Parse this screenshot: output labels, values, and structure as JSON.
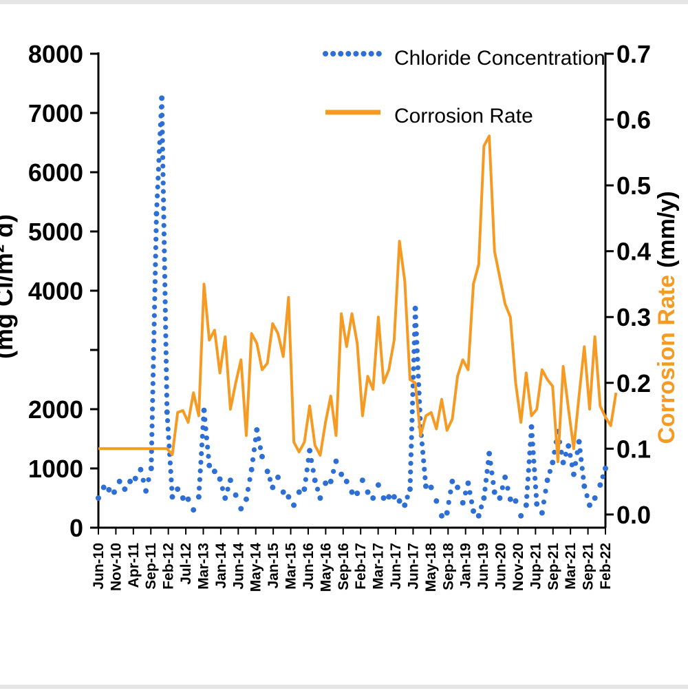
{
  "chart_data": {
    "type": "line",
    "title": "",
    "xlabel": "",
    "y_left": {
      "label": "(mg Cl/m² d)",
      "ticks": [
        0,
        1000,
        2000,
        3000,
        4000,
        5000,
        6000,
        7000,
        8000
      ],
      "tick_labels": [
        "0",
        "1000",
        "2000",
        "",
        "4000",
        "5000",
        "6000",
        "7000",
        "8000"
      ],
      "range": [
        0,
        8000
      ]
    },
    "y_right": {
      "label_part1": "Corrosion Rate",
      "label_part2": "(mm/y)",
      "ticks": [
        0.0,
        0.1,
        0.2,
        0.3,
        0.4,
        0.5,
        0.6,
        0.7
      ],
      "tick_labels": [
        "0.0",
        "0.1",
        "0.2",
        "0.3",
        "0.4",
        "0.5",
        "0.6",
        "0.7"
      ],
      "range": [
        -0.02,
        0.7
      ]
    },
    "x_ticks": [
      "Jun-10",
      "Nov-10",
      "Apr-11",
      "Sep-11",
      "Feb-12",
      "Jul-12",
      "Mar-13",
      "Jan-14",
      "Jun-14",
      "May-14",
      "Jan-15",
      "Mar-15",
      "Jun-16",
      "May-16",
      "Sep-16",
      "Feb-17",
      "Mar-17",
      "Jun-17",
      "Jun-17",
      "May-18",
      "Sep-18",
      "Jan-19",
      "Jun-19",
      "Jun-20",
      "Nov-20",
      "Jup-21",
      "Sep-21",
      "Mar-21",
      "Sep-21",
      "Feb-22"
    ],
    "legend": {
      "position": "top-right"
    },
    "colors": {
      "chloride": "#2e6fd6",
      "corrosion": "#f59b24",
      "axis": "#000000"
    },
    "series": [
      {
        "name": "Chloride Concentration",
        "axis": "left",
        "style": "dotted",
        "values": [
          500,
          680,
          640,
          600,
          780,
          650,
          780,
          830,
          980,
          620,
          1000,
          5300,
          7250,
          1950,
          520,
          650,
          500,
          480,
          300,
          520,
          1980,
          1050,
          950,
          820,
          500,
          800,
          550,
          320,
          480,
          980,
          1650,
          1200,
          950,
          680,
          850,
          600,
          520,
          380,
          600,
          650,
          1300,
          800,
          500,
          750,
          780,
          1120,
          900,
          780,
          600,
          580,
          800,
          600,
          500,
          720,
          500,
          520,
          520,
          450,
          380,
          650,
          3700,
          1700,
          700,
          680,
          450,
          200,
          250,
          780,
          680,
          420,
          750,
          280,
          200,
          500,
          1250,
          600,
          500,
          850,
          480,
          450,
          200,
          380,
          1700,
          400,
          250,
          800,
          1100,
          1620,
          1100,
          1380,
          900,
          1450,
          700,
          380,
          500,
          720,
          1000
        ]
      },
      {
        "name": "Corrosion Rate",
        "axis": "right",
        "style": "solid",
        "points": [
          [
            0,
            0.1
          ],
          [
            13,
            0.1
          ],
          [
            14,
            0.091
          ],
          [
            15,
            0.155
          ],
          [
            16,
            0.158
          ],
          [
            17,
            0.14
          ],
          [
            18,
            0.185
          ],
          [
            19,
            0.15
          ],
          [
            20,
            0.35
          ],
          [
            21,
            0.265
          ],
          [
            22,
            0.28
          ],
          [
            23,
            0.215
          ],
          [
            24,
            0.27
          ],
          [
            25,
            0.16
          ],
          [
            26,
            0.2
          ],
          [
            27,
            0.235
          ],
          [
            28,
            0.12
          ],
          [
            29,
            0.275
          ],
          [
            30,
            0.26
          ],
          [
            31,
            0.22
          ],
          [
            32,
            0.23
          ],
          [
            33,
            0.29
          ],
          [
            34,
            0.275
          ],
          [
            35,
            0.24
          ],
          [
            36,
            0.33
          ],
          [
            37,
            0.11
          ],
          [
            38,
            0.095
          ],
          [
            39,
            0.11
          ],
          [
            40,
            0.165
          ],
          [
            41,
            0.105
          ],
          [
            42,
            0.09
          ],
          [
            43,
            0.14
          ],
          [
            44,
            0.18
          ],
          [
            45,
            0.12
          ],
          [
            46,
            0.305
          ],
          [
            47,
            0.255
          ],
          [
            48,
            0.305
          ],
          [
            49,
            0.26
          ],
          [
            50,
            0.15
          ],
          [
            51,
            0.21
          ],
          [
            52,
            0.19
          ],
          [
            53,
            0.3
          ],
          [
            54,
            0.2
          ],
          [
            55,
            0.22
          ],
          [
            56,
            0.265
          ],
          [
            57,
            0.415
          ],
          [
            58,
            0.355
          ],
          [
            59,
            0.205
          ],
          [
            60,
            0.2
          ],
          [
            61,
            0.12
          ],
          [
            62,
            0.15
          ],
          [
            63,
            0.155
          ],
          [
            64,
            0.13
          ],
          [
            65,
            0.175
          ],
          [
            66,
            0.128
          ],
          [
            67,
            0.145
          ],
          [
            68,
            0.21
          ],
          [
            69,
            0.235
          ],
          [
            70,
            0.22
          ],
          [
            71,
            0.35
          ],
          [
            72,
            0.38
          ],
          [
            73,
            0.56
          ],
          [
            74,
            0.575
          ],
          [
            75,
            0.4
          ],
          [
            76,
            0.36
          ],
          [
            77,
            0.32
          ],
          [
            78,
            0.3
          ],
          [
            79,
            0.2
          ],
          [
            80,
            0.14
          ],
          [
            81,
            0.215
          ],
          [
            82,
            0.15
          ],
          [
            83,
            0.16
          ],
          [
            84,
            0.22
          ],
          [
            85,
            0.205
          ],
          [
            86,
            0.195
          ],
          [
            87,
            0.08
          ],
          [
            88,
            0.225
          ],
          [
            89,
            0.16
          ],
          [
            90,
            0.1
          ],
          [
            91,
            0.18
          ],
          [
            92,
            0.255
          ],
          [
            93,
            0.16
          ],
          [
            94,
            0.27
          ],
          [
            95,
            0.165
          ],
          [
            96,
            0.148
          ],
          [
            97,
            0.135
          ],
          [
            98,
            0.185
          ]
        ]
      }
    ]
  }
}
